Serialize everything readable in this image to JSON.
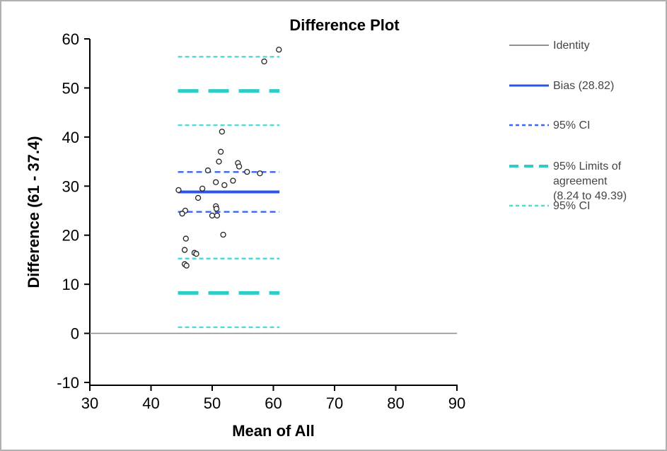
{
  "window": {
    "background": "#ffffff",
    "border_color": "#b0b0b0"
  },
  "chart_data": {
    "type": "scatter",
    "title": "Difference Plot",
    "xlabel": "Mean of All",
    "ylabel": "Difference (61 - 37.4)",
    "xlim": [
      30,
      90
    ],
    "ylim": [
      -10,
      60
    ],
    "xticks": [
      30,
      40,
      50,
      60,
      70,
      80,
      90
    ],
    "yticks": [
      -10,
      0,
      10,
      20,
      30,
      40,
      50,
      60
    ],
    "grid": false,
    "legend_position": "right",
    "points": [
      [
        60.9,
        57.8
      ],
      [
        58.5,
        55.4
      ],
      [
        51.6,
        41.1
      ],
      [
        51.4,
        37.0
      ],
      [
        51.1,
        35.0
      ],
      [
        54.2,
        34.7
      ],
      [
        54.4,
        34.0
      ],
      [
        49.3,
        33.2
      ],
      [
        55.7,
        32.9
      ],
      [
        57.8,
        32.6
      ],
      [
        53.4,
        31.1
      ],
      [
        50.6,
        30.8
      ],
      [
        52.0,
        30.2
      ],
      [
        48.4,
        29.5
      ],
      [
        44.5,
        29.2
      ],
      [
        47.7,
        27.6
      ],
      [
        50.6,
        25.9
      ],
      [
        50.7,
        25.4
      ],
      [
        45.6,
        25.0
      ],
      [
        45.1,
        24.4
      ],
      [
        50.0,
        24.0
      ],
      [
        50.8,
        24.0
      ],
      [
        51.8,
        20.1
      ],
      [
        45.7,
        19.3
      ],
      [
        45.5,
        17.0
      ],
      [
        47.1,
        16.4
      ],
      [
        47.4,
        16.2
      ],
      [
        45.5,
        14.1
      ],
      [
        45.8,
        13.8
      ]
    ],
    "lines": {
      "identity": {
        "label": "Identity",
        "value": 0,
        "span": [
          30,
          90
        ],
        "style": "solid"
      },
      "bias": {
        "label": "Bias (28.82)",
        "value": 28.82,
        "span": [
          44.4,
          61.0
        ],
        "style": "solid"
      },
      "bias_ci": {
        "label": "95% CI",
        "values": [
          24.76,
          32.88
        ],
        "span": [
          44.4,
          61.0
        ],
        "style": "dashed"
      },
      "loa": {
        "label": "95% Limits of agreement (8.24 to 49.39)",
        "values": [
          8.24,
          49.39
        ],
        "span": [
          44.4,
          61.0
        ],
        "style": "long-dash"
      },
      "loa_ci": {
        "label": "95% CI",
        "values": [
          1.24,
          15.24,
          42.42,
          56.36
        ],
        "span": [
          44.4,
          61.0
        ],
        "style": "dashed"
      }
    },
    "colors": {
      "identity": "#8f8f8f",
      "bias": "#2e55e0",
      "bias_ci": "#3a66f2",
      "loa": "#2fccc6",
      "loa_ci": "#55d7d3",
      "point_stroke": "#222222",
      "axis": "#000000"
    }
  },
  "legend": {
    "items": [
      {
        "id": "identity",
        "label": "Identity"
      },
      {
        "id": "bias",
        "label": "Bias (28.82)"
      },
      {
        "id": "bias_ci",
        "label": "95% CI"
      },
      {
        "id": "loa",
        "label": "95% Limits of\nagreement\n(8.24 to 49.39)"
      },
      {
        "id": "loa_ci",
        "label": "95% CI"
      }
    ]
  }
}
